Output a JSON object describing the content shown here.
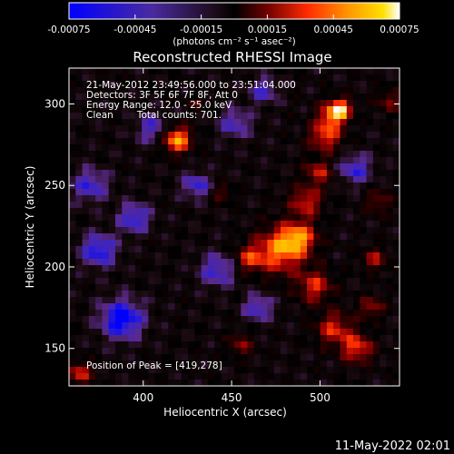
{
  "colorbar": {
    "ticks": [
      "-0.00075",
      "-0.00045",
      "-0.00015",
      "0.00015",
      "0.00045",
      "0.00075"
    ],
    "unit_label": "(photons cm⁻² s⁻¹ asec⁻²)"
  },
  "chart_data": {
    "type": "heatmap",
    "title": "Reconstructed RHESSI Image",
    "xlabel": "Heliocentric X (arcsec)",
    "ylabel": "Heliocentric Y (arcsec)",
    "xlim": [
      358,
      545
    ],
    "ylim": [
      127,
      322
    ],
    "xticks": [
      "400",
      "450",
      "500"
    ],
    "yticks": [
      "150",
      "200",
      "250",
      "300"
    ],
    "color_range": [
      -0.00075,
      0.00075
    ],
    "colormap": [
      "#0000ff",
      "#3a23c8",
      "#5a2a8a",
      "#1a0a10",
      "#000000",
      "#3a0000",
      "#a00000",
      "#ff3300",
      "#ff8a00",
      "#ffd400",
      "#ffffff"
    ],
    "sources": [
      {
        "x": 419,
        "y": 278,
        "r": 8,
        "value": 0.00072
      },
      {
        "x": 477,
        "y": 210,
        "r": 14,
        "value": 0.0006
      },
      {
        "x": 488,
        "y": 218,
        "r": 10,
        "value": 0.00055
      },
      {
        "x": 492,
        "y": 240,
        "r": 9,
        "value": 0.00045
      },
      {
        "x": 499,
        "y": 258,
        "r": 8,
        "value": 0.0004
      },
      {
        "x": 503,
        "y": 280,
        "r": 9,
        "value": 0.0005
      },
      {
        "x": 507,
        "y": 293,
        "r": 8,
        "value": 0.00055
      },
      {
        "x": 512,
        "y": 297,
        "r": 6,
        "value": 0.0006
      },
      {
        "x": 460,
        "y": 205,
        "r": 8,
        "value": 0.0004
      },
      {
        "x": 497,
        "y": 188,
        "r": 10,
        "value": 0.00045
      },
      {
        "x": 508,
        "y": 162,
        "r": 10,
        "value": 0.00045
      },
      {
        "x": 521,
        "y": 150,
        "r": 9,
        "value": 0.0005
      },
      {
        "x": 529,
        "y": 175,
        "r": 7,
        "value": 0.00035
      },
      {
        "x": 531,
        "y": 205,
        "r": 7,
        "value": 0.00035
      },
      {
        "x": 533,
        "y": 240,
        "r": 7,
        "value": 0.0003
      },
      {
        "x": 539,
        "y": 302,
        "r": 7,
        "value": 0.0003
      },
      {
        "x": 364,
        "y": 135,
        "r": 7,
        "value": 0.00045
      },
      {
        "x": 455,
        "y": 152,
        "r": 7,
        "value": 0.0003
      },
      {
        "x": 445,
        "y": 245,
        "r": 6,
        "value": 0.00025
      },
      {
        "x": 432,
        "y": 300,
        "r": 5,
        "value": 0.0002
      },
      {
        "x": 388,
        "y": 168,
        "r": 12,
        "value": -0.0006
      },
      {
        "x": 375,
        "y": 210,
        "r": 10,
        "value": -0.0005
      },
      {
        "x": 395,
        "y": 230,
        "r": 9,
        "value": -0.00045
      },
      {
        "x": 442,
        "y": 198,
        "r": 10,
        "value": -0.0004
      },
      {
        "x": 430,
        "y": 250,
        "r": 8,
        "value": -0.0004
      },
      {
        "x": 405,
        "y": 285,
        "r": 9,
        "value": -0.00035
      },
      {
        "x": 452,
        "y": 288,
        "r": 9,
        "value": -0.00035
      },
      {
        "x": 465,
        "y": 175,
        "r": 8,
        "value": -0.0004
      },
      {
        "x": 520,
        "y": 260,
        "r": 9,
        "value": -0.0004
      },
      {
        "x": 468,
        "y": 308,
        "r": 8,
        "value": -0.00035
      },
      {
        "x": 370,
        "y": 250,
        "r": 10,
        "value": -0.0004
      }
    ]
  },
  "annotations": {
    "time_range": "21-May-2012 23:49:56.000 to 23:51:04.000",
    "detectors": "Detectors: 3F 5F 6F 7F 8F, Att 0",
    "energy": "Energy Range: 12.0 - 25.0 keV",
    "clean_label": "Clean",
    "counts": "Total counts: 701.",
    "peak": "Position of Peak = [419,278]"
  },
  "footer": {
    "timestamp": "11-May-2022 02:01"
  }
}
